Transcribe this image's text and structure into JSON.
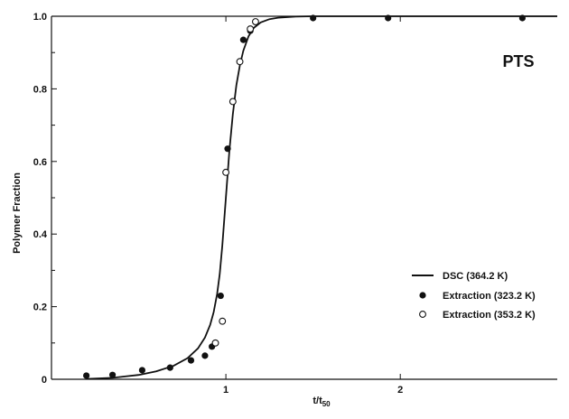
{
  "chart_data": {
    "type": "scatter",
    "annotation": "PTS",
    "xlabel": "t/t",
    "xlabel_sub": "50",
    "ylabel": "Polymer Fraction",
    "xlim": [
      0,
      2.9
    ],
    "ylim": [
      0,
      1.0
    ],
    "x_ticks": [
      {
        "value": 1,
        "label": "1"
      },
      {
        "value": 2,
        "label": "2"
      }
    ],
    "y_ticks": [
      {
        "value": 0,
        "label": "0"
      },
      {
        "value": 0.2,
        "label": "0.2"
      },
      {
        "value": 0.4,
        "label": "0.4"
      },
      {
        "value": 0.6,
        "label": "0.6"
      },
      {
        "value": 0.8,
        "label": "0.8"
      },
      {
        "value": 1.0,
        "label": "1.0"
      }
    ],
    "grid": false,
    "legend_position": "right",
    "series": [
      {
        "name": "DSC (364.2 K)",
        "kind": "line",
        "x": [
          0.2,
          0.35,
          0.5,
          0.6,
          0.7,
          0.78,
          0.84,
          0.88,
          0.91,
          0.93,
          0.95,
          0.965,
          0.98,
          1.0,
          1.02,
          1.04,
          1.06,
          1.08,
          1.1,
          1.13,
          1.16,
          1.2,
          1.25,
          1.3,
          1.4,
          1.5,
          1.6,
          1.8,
          2.0,
          2.5,
          2.9
        ],
        "y": [
          0.001,
          0.004,
          0.012,
          0.022,
          0.037,
          0.058,
          0.085,
          0.115,
          0.15,
          0.185,
          0.235,
          0.29,
          0.37,
          0.5,
          0.63,
          0.73,
          0.81,
          0.865,
          0.905,
          0.945,
          0.968,
          0.983,
          0.992,
          0.996,
          0.999,
          1.0,
          1.0,
          1.0,
          1.0,
          1.0,
          1.0
        ]
      },
      {
        "name": "Extraction (323.2 K)",
        "kind": "filled",
        "x": [
          0.2,
          0.35,
          0.52,
          0.68,
          0.8,
          0.88,
          0.92,
          0.97,
          1.01,
          1.1,
          1.14,
          1.5,
          1.93,
          2.7
        ],
        "y": [
          0.01,
          0.012,
          0.025,
          0.032,
          0.052,
          0.065,
          0.09,
          0.23,
          0.635,
          0.935,
          0.96,
          0.995,
          0.995,
          0.995
        ]
      },
      {
        "name": "Extraction (353.2 K)",
        "kind": "open",
        "x": [
          0.94,
          0.98,
          1.0,
          1.04,
          1.08,
          1.14,
          1.17
        ],
        "y": [
          0.1,
          0.16,
          0.57,
          0.765,
          0.875,
          0.965,
          0.985
        ]
      }
    ]
  }
}
